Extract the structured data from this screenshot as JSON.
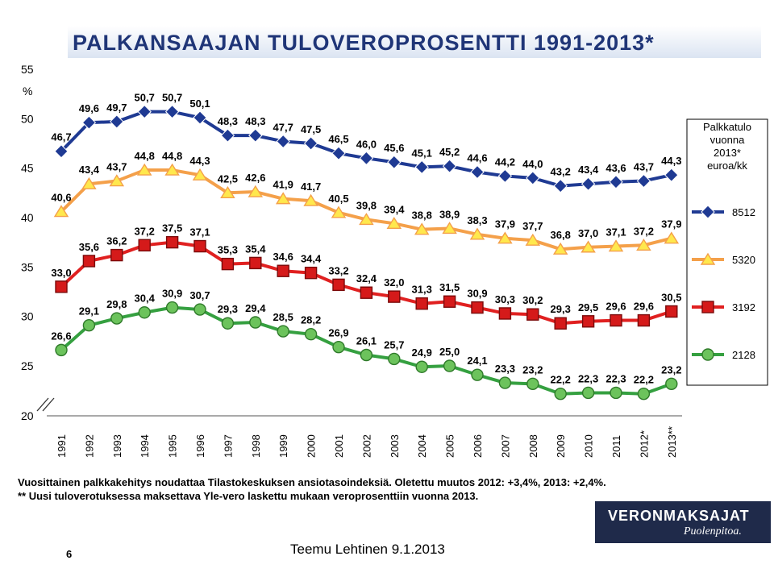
{
  "page": {
    "title": "PALKANSAAJAN TULOVEROPROSENTTI 1991-2013*",
    "notes": [
      "Vuosittainen palkkakehitys noudattaa Tilastokeskuksen ansiotasoindeksiä. Oletettu muutos 2012: +3,4%, 2013: +2,4%.",
      "** Uusi tuloverotuksessa maksettava Yle-vero laskettu mukaan veroprosenttiin vuonna 2013."
    ],
    "page_number": "6",
    "author": "Teemu Lehtinen 9.1.2013",
    "logo": {
      "name": "VERONMAKSAJAT",
      "slogan": "Puolenpitoa."
    }
  },
  "chart_data": {
    "type": "line",
    "ylabel": "%",
    "ylim": [
      20,
      55
    ],
    "y_ticks": [
      20,
      25,
      30,
      35,
      40,
      45,
      50,
      55
    ],
    "axis_break": true,
    "categories": [
      "1991",
      "1992",
      "1993",
      "1994",
      "1995",
      "1996",
      "1997",
      "1998",
      "1999",
      "2000",
      "2001",
      "2002",
      "2003",
      "2004",
      "2005",
      "2006",
      "2007",
      "2008",
      "2009",
      "2010",
      "2011",
      "2012*",
      "2013**"
    ],
    "legend_title": "Palkkatulo vuonna 2013* euroa/kk",
    "legend_position": "right",
    "series": [
      {
        "name": "8512",
        "color": "#1f3a93",
        "marker": "diamond",
        "values": [
          46.7,
          49.6,
          49.7,
          50.7,
          50.7,
          50.1,
          48.3,
          48.3,
          47.7,
          47.5,
          46.5,
          46.0,
          45.6,
          45.1,
          45.2,
          44.6,
          44.2,
          44.0,
          43.2,
          43.4,
          43.6,
          43.7,
          44.3
        ]
      },
      {
        "name": "5320",
        "color": "#f4a04a",
        "marker": "triangle",
        "fill": "#ffe84d",
        "values": [
          40.6,
          43.4,
          43.7,
          44.8,
          44.8,
          44.3,
          42.5,
          42.6,
          41.9,
          41.7,
          40.5,
          39.8,
          39.4,
          38.8,
          38.9,
          38.3,
          37.9,
          37.7,
          36.8,
          37.0,
          37.1,
          37.2,
          37.9
        ]
      },
      {
        "name": "3192",
        "color": "#e02020",
        "marker": "square",
        "values": [
          33.0,
          35.6,
          36.2,
          37.2,
          37.5,
          37.1,
          35.3,
          35.4,
          34.6,
          34.4,
          33.2,
          32.4,
          32.0,
          31.3,
          31.5,
          30.9,
          30.3,
          30.2,
          29.3,
          29.5,
          29.6,
          29.6,
          30.5
        ]
      },
      {
        "name": "2128",
        "color": "#35a040",
        "marker": "circle",
        "values": [
          26.6,
          29.1,
          29.8,
          30.4,
          30.9,
          30.7,
          29.3,
          29.4,
          28.5,
          28.2,
          26.9,
          26.1,
          25.7,
          24.9,
          25.0,
          24.1,
          23.3,
          23.2,
          22.2,
          22.3,
          22.3,
          22.2,
          23.2
        ]
      }
    ]
  }
}
